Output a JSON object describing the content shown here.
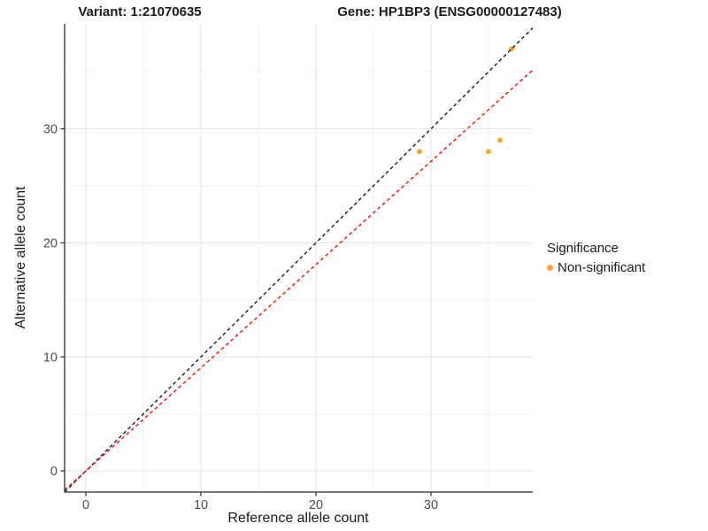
{
  "titles": {
    "variant": "Variant: 1:21070635",
    "gene": "Gene: HP1BP3 (ENSG00000127483)"
  },
  "axes": {
    "x_label": "Reference allele count",
    "y_label": "Alternative allele count"
  },
  "legend": {
    "title": "Significance",
    "items": [
      {
        "label": "Non-significant",
        "color": "#F8A333"
      }
    ]
  },
  "chart_data": {
    "type": "scatter",
    "title": "Variant: 1:21070635 | Gene: HP1BP3 (ENSG00000127483)",
    "xlabel": "Reference allele count",
    "ylabel": "Alternative allele count",
    "xlim": [
      -1.85,
      38.85
    ],
    "ylim": [
      -1.85,
      39.2
    ],
    "x_ticks": [
      0,
      10,
      20,
      30
    ],
    "y_ticks": [
      0,
      10,
      20,
      30
    ],
    "x_minor_ticks": [
      5,
      15,
      25,
      35
    ],
    "y_minor_ticks": [
      5,
      15,
      25,
      35
    ],
    "grid": true,
    "legend_position": "right",
    "series": [
      {
        "name": "Non-significant",
        "color": "#F8A333",
        "points": [
          [
            29,
            28
          ],
          [
            35,
            28
          ],
          [
            36,
            29
          ],
          [
            37,
            37
          ]
        ]
      }
    ],
    "lines": [
      {
        "name": "identity-line",
        "slope": 1.0,
        "intercept": 0,
        "color": "#1a1a1a",
        "style": "dashed"
      },
      {
        "name": "expected-ratio-line",
        "slope": 0.905,
        "intercept": 0,
        "color": "#ee1100",
        "style": "dashed"
      }
    ],
    "colors": {
      "point": "#F8A333",
      "grid_major": "#e3e3e3",
      "grid_minor": "#f0f0f0",
      "axis_line": "#4a4a4a",
      "tick_mark": "#333333",
      "tick_label": "#4d4d4d",
      "background": "#ffffff"
    }
  }
}
